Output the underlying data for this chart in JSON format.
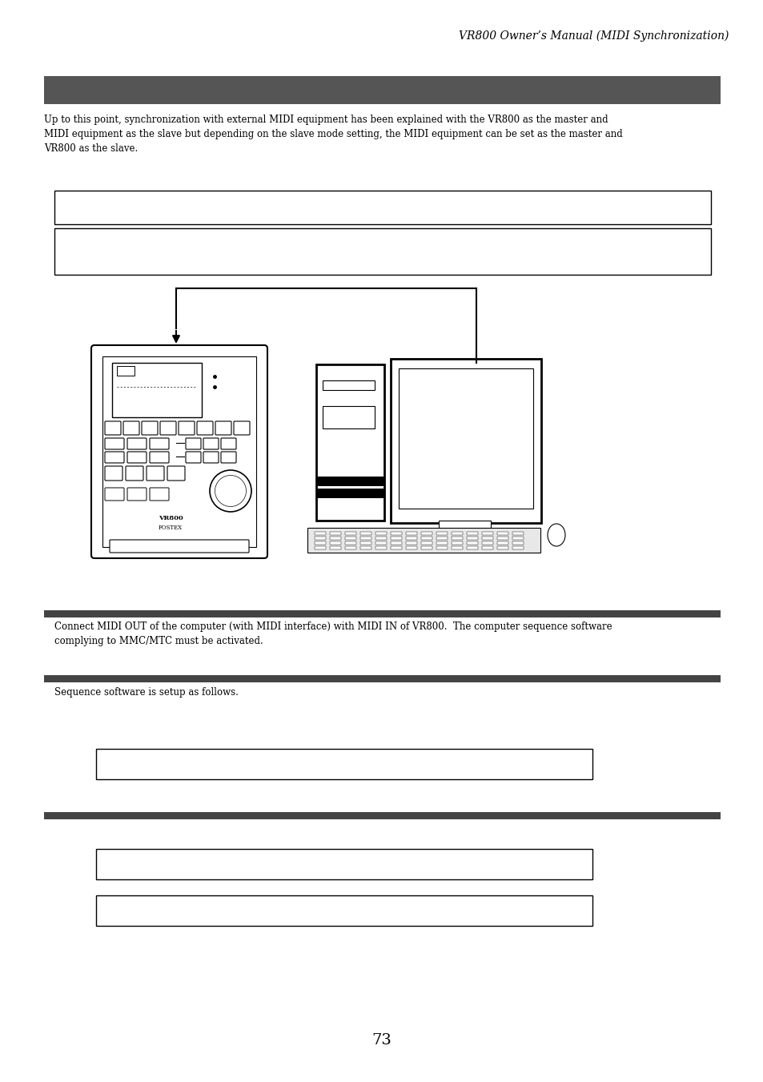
{
  "title_text": "VR800 Owner’s Manual (MIDI Synchronization)",
  "dark_header_color": "#555555",
  "body_text_1": "Up to this point, synchronization with external MIDI equipment has been explained with the VR800 as the master and\nMIDI equipment as the slave but depending on the slave mode setting, the MIDI equipment can be set as the master and\nVR800 as the slave.",
  "connect_text": "Connect MIDI OUT of the computer (with MIDI interface) with MIDI IN of VR800.  The computer sequence software\ncomplying to MMC/MTC must be activated.",
  "setup_text": "Sequence software is setup as follows.",
  "page_number": "73",
  "bg_color": "#ffffff",
  "text_color": "#000000",
  "font_size_body": 8.5,
  "font_size_title": 10
}
